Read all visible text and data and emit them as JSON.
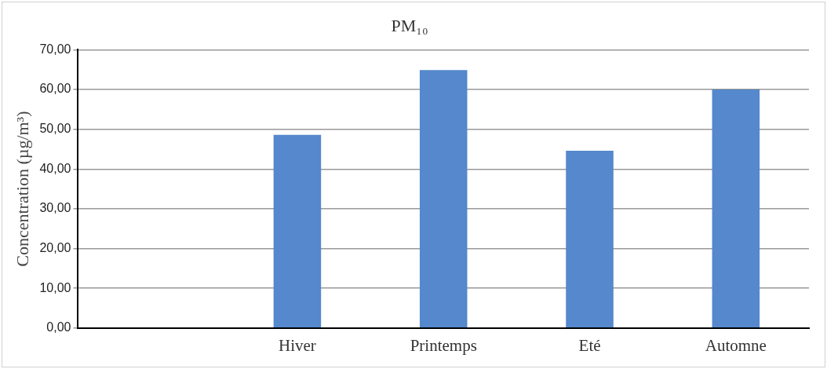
{
  "chart_data": {
    "type": "bar",
    "title": "PM₁₀",
    "ylabel": "Concentration (µg/m³)",
    "categories": [
      null,
      "Hiver",
      "Printemps",
      "Eté",
      "Automne"
    ],
    "values": [
      null,
      48.6,
      64.9,
      44.6,
      60
    ],
    "color": "#5588cc",
    "ylim": [
      0,
      70
    ],
    "yticks": [
      {
        "value": 0,
        "label": "0,00"
      },
      {
        "value": 10,
        "label": "10,00"
      },
      {
        "value": 20,
        "label": "20,00"
      },
      {
        "value": 30,
        "label": "30,00"
      },
      {
        "value": 40,
        "label": "40,00"
      },
      {
        "value": 50,
        "label": "50,00"
      },
      {
        "value": 60,
        "label": "60,00"
      },
      {
        "value": 70,
        "label": "70,00"
      }
    ],
    "grid": "y",
    "legend": false
  }
}
